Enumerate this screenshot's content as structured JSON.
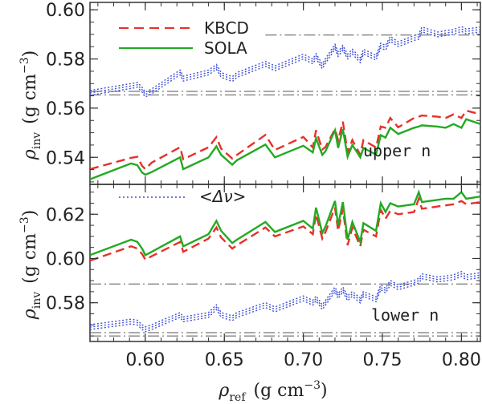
{
  "chart_data": [
    {
      "panel": "upper",
      "type": "line",
      "ylabel": "ρinv (g cm⁻³)",
      "ylabel_parts": {
        "symbol": "ρ",
        "sub": "inv",
        "unit_open": "(g cm",
        "unit_exp": "−3",
        "unit_close": ")"
      },
      "xlim": [
        0.565,
        0.812
      ],
      "ylim": [
        0.529,
        0.603
      ],
      "yticks": [
        0.54,
        0.56,
        0.58,
        0.6
      ],
      "yticklabels": [
        "0.54",
        "0.56",
        "0.58",
        "0.60"
      ],
      "annotation": "upper n",
      "legend": [
        {
          "name": "KBCD",
          "color": "#e8302a",
          "style": "dashed"
        },
        {
          "name": "SOLA",
          "color": "#22aa22",
          "style": "solid"
        }
      ],
      "x": [
        0.565,
        0.591,
        0.595,
        0.598,
        0.6,
        0.604,
        0.622,
        0.624,
        0.64,
        0.645,
        0.648,
        0.655,
        0.658,
        0.676,
        0.682,
        0.7,
        0.706,
        0.708,
        0.712,
        0.714,
        0.72,
        0.722,
        0.725,
        0.728,
        0.731,
        0.736,
        0.738,
        0.746,
        0.749,
        0.752,
        0.755,
        0.76,
        0.77,
        0.773,
        0.775,
        0.785,
        0.79,
        0.795,
        0.8,
        0.803,
        0.812
      ],
      "series": [
        {
          "name": "KBCD",
          "color": "#e8302a",
          "values": [
            0.5352,
            0.5398,
            0.5402,
            0.5365,
            0.5352,
            0.5378,
            0.5441,
            0.5392,
            0.5441,
            0.5482,
            0.5435,
            0.5395,
            0.541,
            0.5491,
            0.543,
            0.5483,
            0.544,
            0.551,
            0.5432,
            0.5442,
            0.5515,
            0.547,
            0.5545,
            0.542,
            0.547,
            0.541,
            0.547,
            0.544,
            0.5525,
            0.552,
            0.556,
            0.5522,
            0.556,
            0.5565,
            0.557,
            0.5565,
            0.556,
            0.5575,
            0.556,
            0.559,
            0.5575
          ]
        },
        {
          "name": "SOLA",
          "color": "#22aa22",
          "values": [
            0.5311,
            0.5375,
            0.5368,
            0.5338,
            0.5329,
            0.534,
            0.54,
            0.5352,
            0.54,
            0.5445,
            0.541,
            0.537,
            0.5388,
            0.5452,
            0.54,
            0.5447,
            0.542,
            0.5478,
            0.541,
            0.5425,
            0.551,
            0.5438,
            0.5515,
            0.5402,
            0.545,
            0.54,
            0.5438,
            0.5411,
            0.549,
            0.548,
            0.552,
            0.5495,
            0.552,
            0.5525,
            0.553,
            0.5525,
            0.552,
            0.5535,
            0.552,
            0.5555,
            0.5535
          ]
        },
        {
          "name": "<Δν>",
          "color": "#3d4fd8",
          "values": [
            0.5662,
            0.569,
            0.5695,
            0.5675,
            0.5655,
            0.5668,
            0.5745,
            0.572,
            0.5745,
            0.5768,
            0.5735,
            0.5718,
            0.5735,
            0.578,
            0.5762,
            0.581,
            0.579,
            0.5812,
            0.577,
            0.5792,
            0.585,
            0.582,
            0.5845,
            0.581,
            0.583,
            0.5795,
            0.583,
            0.5805,
            0.5855,
            0.5845,
            0.5882,
            0.586,
            0.5885,
            0.589,
            0.592,
            0.59,
            0.5905,
            0.591,
            0.5922,
            0.5912,
            0.592
          ]
        }
      ],
      "reference_levels": [
        {
          "y": 0.5897,
          "x_start": 0.676,
          "style": "dash-dot",
          "color": "#555555"
        },
        {
          "y": 0.5668,
          "x_start": 0.565,
          "style": "dash-dot",
          "color": "#555555"
        },
        {
          "y": 0.5654,
          "x_start": 0.565,
          "style": "dash-dot",
          "color": "#555555"
        }
      ]
    },
    {
      "panel": "lower",
      "type": "line",
      "ylabel": "ρinv (g cm⁻³)",
      "ylabel_parts": {
        "symbol": "ρ",
        "sub": "inv",
        "unit_open": "(g cm",
        "unit_exp": "−3",
        "unit_close": ")"
      },
      "xlabel": "ρref (g cm⁻³)",
      "xlabel_parts": {
        "symbol": "ρ",
        "sub": "ref",
        "unit_open": "(g cm",
        "unit_exp": "−3",
        "unit_close": ")"
      },
      "xlim": [
        0.565,
        0.812
      ],
      "ylim": [
        0.5625,
        0.6335
      ],
      "xticks": [
        0.6,
        0.65,
        0.7,
        0.75,
        0.8
      ],
      "xticklabels": [
        "0.60",
        "0.65",
        "0.70",
        "0.75",
        "0.80"
      ],
      "yticks": [
        0.58,
        0.6,
        0.62
      ],
      "yticklabels": [
        "0.58",
        "0.60",
        "0.62"
      ],
      "annotation": "lower n",
      "legend": [
        {
          "name": "<Δν>",
          "color": "#3d4fd8",
          "style": "dotted"
        }
      ],
      "x": [
        0.565,
        0.591,
        0.595,
        0.598,
        0.6,
        0.604,
        0.622,
        0.624,
        0.64,
        0.645,
        0.648,
        0.655,
        0.658,
        0.676,
        0.682,
        0.7,
        0.706,
        0.708,
        0.712,
        0.714,
        0.72,
        0.722,
        0.725,
        0.728,
        0.731,
        0.736,
        0.738,
        0.746,
        0.749,
        0.752,
        0.755,
        0.76,
        0.77,
        0.773,
        0.775,
        0.785,
        0.79,
        0.795,
        0.8,
        0.803,
        0.812
      ],
      "series": [
        {
          "name": "KBCD",
          "color": "#e8302a",
          "values": [
            0.599,
            0.6055,
            0.6045,
            0.602,
            0.5995,
            0.601,
            0.6075,
            0.603,
            0.609,
            0.614,
            0.6095,
            0.6045,
            0.606,
            0.614,
            0.61,
            0.6145,
            0.611,
            0.62,
            0.609,
            0.612,
            0.623,
            0.6125,
            0.6225,
            0.606,
            0.614,
            0.6055,
            0.613,
            0.61,
            0.622,
            0.618,
            0.6215,
            0.62,
            0.621,
            0.627,
            0.6225,
            0.6235,
            0.624,
            0.6245,
            0.626,
            0.6245,
            0.6255
          ]
        },
        {
          "name": "SOLA",
          "color": "#22aa22",
          "values": [
            0.6015,
            0.6085,
            0.6075,
            0.6045,
            0.6015,
            0.603,
            0.61,
            0.6055,
            0.611,
            0.617,
            0.6125,
            0.607,
            0.6085,
            0.6165,
            0.612,
            0.617,
            0.6135,
            0.623,
            0.6115,
            0.6145,
            0.626,
            0.615,
            0.6255,
            0.6085,
            0.6165,
            0.6075,
            0.616,
            0.6125,
            0.625,
            0.621,
            0.625,
            0.6235,
            0.6245,
            0.63,
            0.6255,
            0.6265,
            0.627,
            0.627,
            0.63,
            0.627,
            0.628
          ]
        },
        {
          "name": "<Δν>",
          "color": "#3d4fd8",
          "values": [
            0.569,
            0.5715,
            0.571,
            0.569,
            0.568,
            0.569,
            0.5745,
            0.5725,
            0.5745,
            0.578,
            0.5745,
            0.573,
            0.5745,
            0.579,
            0.577,
            0.582,
            0.58,
            0.582,
            0.578,
            0.58,
            0.586,
            0.583,
            0.586,
            0.582,
            0.584,
            0.581,
            0.584,
            0.5815,
            0.587,
            0.5855,
            0.589,
            0.587,
            0.589,
            0.59,
            0.592,
            0.5905,
            0.591,
            0.5915,
            0.593,
            0.5915,
            0.5925
          ]
        }
      ],
      "reference_levels": [
        {
          "y": 0.5885,
          "x_start": 0.565,
          "style": "dash-dot",
          "color": "#555555"
        },
        {
          "y": 0.5665,
          "x_start": 0.565,
          "style": "dash-dot",
          "color": "#555555"
        },
        {
          "y": 0.565,
          "x_start": 0.565,
          "style": "dash-dot",
          "color": "#555555"
        }
      ]
    }
  ]
}
